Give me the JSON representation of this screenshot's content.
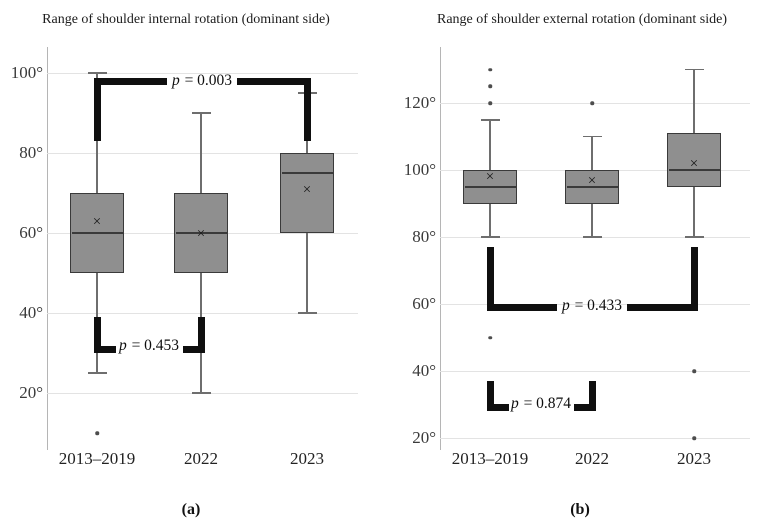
{
  "colors": {
    "background": "#ffffff",
    "box_fill": "#8f8f8f",
    "box_border": "#3a3a3a",
    "median": "#3a3a3a",
    "whisker": "#6e6e6e",
    "gridline": "#e3e3e3",
    "axis_line": "#b5b5b5",
    "bracket": "#0f0f0f",
    "title_text": "#1c1c1c",
    "tick_text": "#3a3a3a",
    "label_text": "#222222"
  },
  "chart_data": [
    {
      "type": "box",
      "title": "Range of shoulder internal rotation (dominant side)",
      "caption": "(a)",
      "y_tick_suffix": "°",
      "mean_marker": "×",
      "y_ticks": [
        100,
        80,
        60,
        40,
        20
      ],
      "ylim": [
        5,
        105
      ],
      "grid": true,
      "legend": "none",
      "categories": [
        "2013–2019",
        "2022",
        "2023"
      ],
      "series": [
        {
          "category": "2013–2019",
          "whisker_low": 25,
          "q1": 50,
          "median": 60,
          "q3": 70,
          "whisker_high": 100,
          "mean": 62.5,
          "outliers": [
            10
          ]
        },
        {
          "category": "2022",
          "whisker_low": 20,
          "q1": 50,
          "median": 60,
          "q3": 70,
          "whisker_high": 90,
          "mean": 59.5,
          "outliers": []
        },
        {
          "category": "2023",
          "whisker_low": 40,
          "q1": 60,
          "median": 75,
          "q3": 80,
          "whisker_high": 95,
          "mean": 70.5,
          "outliers": []
        }
      ],
      "brackets": [
        {
          "label": "p = 0.003",
          "between": [
            "2013–2019",
            "2023"
          ],
          "style": "rail-top",
          "rail": 98,
          "arm_end": 83
        },
        {
          "label": "p = 0.453",
          "between": [
            "2013–2019",
            "2022"
          ],
          "style": "feet-bottom",
          "arm_start": 39,
          "arm_end": 30
        }
      ]
    },
    {
      "type": "box",
      "title": "Range of shoulder external rotation (dominant side)",
      "caption": "(b)",
      "y_tick_suffix": "°",
      "mean_marker": "×",
      "y_ticks": [
        120,
        100,
        80,
        60,
        40,
        20
      ],
      "ylim": [
        15,
        135
      ],
      "grid": true,
      "legend": "none",
      "categories": [
        "2013–2019",
        "2022",
        "2023"
      ],
      "series": [
        {
          "category": "2013–2019",
          "whisker_low": 80,
          "q1": 90,
          "median": 95,
          "q3": 100,
          "whisker_high": 115,
          "mean": 97.5,
          "outliers": [
            120,
            125,
            130,
            50
          ]
        },
        {
          "category": "2022",
          "whisker_low": 80,
          "q1": 90,
          "median": 95,
          "q3": 100,
          "whisker_high": 110,
          "mean": 96.5,
          "outliers": [
            120
          ]
        },
        {
          "category": "2023",
          "whisker_low": 80,
          "q1": 95,
          "median": 100,
          "q3": 111,
          "whisker_high": 130,
          "mean": 101.5,
          "outliers": [
            40,
            20
          ]
        }
      ],
      "brackets": [
        {
          "label": "p = 0.433",
          "between": [
            "2013–2019",
            "2023"
          ],
          "style": "rail-bottom",
          "rail": 59,
          "arm_start": 77
        },
        {
          "label": "p = 0.874",
          "between": [
            "2013–2019",
            "2022"
          ],
          "style": "feet-bottom",
          "arm_start": 37,
          "arm_end": 28
        }
      ]
    }
  ]
}
